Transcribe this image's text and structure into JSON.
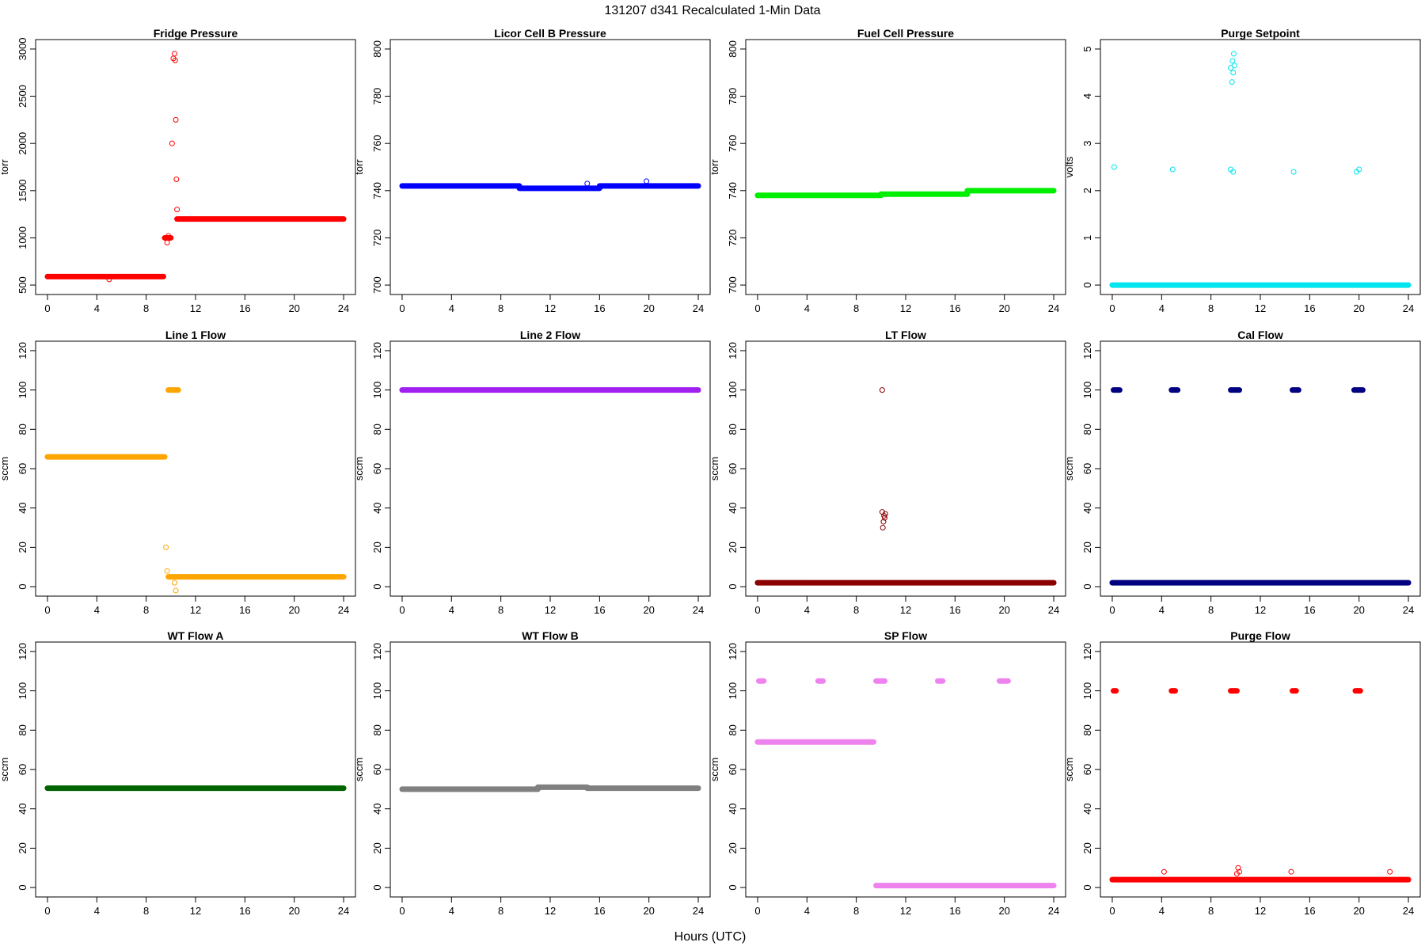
{
  "figure": {
    "title": "131207   d341   Recalculated 1-Min Data",
    "xlabel": "Hours (UTC)"
  },
  "chart_data": [
    {
      "type": "scatter",
      "title": "Fridge Pressure",
      "ylabel": "torr",
      "color": "#ff0000",
      "xlim": [
        0,
        24
      ],
      "ylim": [
        500,
        3000
      ],
      "xticks": [
        0,
        4,
        8,
        12,
        16,
        20,
        24
      ],
      "yticks": [
        500,
        1000,
        1500,
        2000,
        2500,
        3000
      ],
      "segments": [
        {
          "x": [
            0,
            9.4
          ],
          "y": [
            590,
            590
          ]
        },
        {
          "x": [
            9.5,
            10
          ],
          "y": [
            1000,
            1000
          ]
        },
        {
          "x": [
            10.5,
            24
          ],
          "y": [
            1200,
            1200
          ]
        }
      ],
      "points": [
        {
          "x": 5,
          "y": 560
        },
        {
          "x": 9.7,
          "y": 950
        },
        {
          "x": 9.8,
          "y": 1020
        },
        {
          "x": 10.1,
          "y": 2000
        },
        {
          "x": 10.2,
          "y": 2900
        },
        {
          "x": 10.3,
          "y": 2950
        },
        {
          "x": 10.35,
          "y": 2880
        },
        {
          "x": 10.4,
          "y": 2250
        },
        {
          "x": 10.45,
          "y": 1620
        },
        {
          "x": 10.5,
          "y": 1300
        }
      ]
    },
    {
      "type": "scatter",
      "title": "Licor Cell B Pressure",
      "ylabel": "torr",
      "color": "#0000ff",
      "xlim": [
        0,
        24
      ],
      "ylim": [
        700,
        800
      ],
      "xticks": [
        0,
        4,
        8,
        12,
        16,
        20,
        24
      ],
      "yticks": [
        700,
        720,
        740,
        760,
        780,
        800
      ],
      "segments": [
        {
          "x": [
            0,
            9.5
          ],
          "y": [
            742,
            742
          ]
        },
        {
          "x": [
            9.5,
            16
          ],
          "y": [
            741,
            741
          ]
        },
        {
          "x": [
            16,
            24
          ],
          "y": [
            742,
            742
          ]
        }
      ],
      "points": [
        {
          "x": 15,
          "y": 743
        },
        {
          "x": 19.8,
          "y": 744
        }
      ]
    },
    {
      "type": "scatter",
      "title": "Fuel Cell Pressure",
      "ylabel": "torr",
      "color": "#00ee00",
      "xlim": [
        0,
        24
      ],
      "ylim": [
        700,
        800
      ],
      "xticks": [
        0,
        4,
        8,
        12,
        16,
        20,
        24
      ],
      "yticks": [
        700,
        720,
        740,
        760,
        780,
        800
      ],
      "segments": [
        {
          "x": [
            0,
            10
          ],
          "y": [
            738,
            738
          ]
        },
        {
          "x": [
            10,
            17
          ],
          "y": [
            738.5,
            738.5
          ]
        },
        {
          "x": [
            17,
            24
          ],
          "y": [
            740,
            740
          ]
        }
      ],
      "points": []
    },
    {
      "type": "scatter",
      "title": "Purge Setpoint",
      "ylabel": "volts",
      "color": "#00e5ee",
      "xlim": [
        0,
        24
      ],
      "ylim": [
        0,
        5
      ],
      "xticks": [
        0,
        4,
        8,
        12,
        16,
        20,
        24
      ],
      "yticks": [
        0,
        1,
        2,
        3,
        4,
        5
      ],
      "segments": [
        {
          "x": [
            0,
            24
          ],
          "y": [
            0,
            0
          ]
        }
      ],
      "points": [
        {
          "x": 0.15,
          "y": 2.5
        },
        {
          "x": 4.9,
          "y": 2.45
        },
        {
          "x": 9.6,
          "y": 2.45
        },
        {
          "x": 9.8,
          "y": 2.4
        },
        {
          "x": 14.7,
          "y": 2.4
        },
        {
          "x": 19.8,
          "y": 2.4
        },
        {
          "x": 20,
          "y": 2.45
        },
        {
          "x": 9.6,
          "y": 4.6
        },
        {
          "x": 9.7,
          "y": 4.3
        },
        {
          "x": 9.75,
          "y": 4.75
        },
        {
          "x": 9.8,
          "y": 4.5
        },
        {
          "x": 9.85,
          "y": 4.9
        },
        {
          "x": 9.9,
          "y": 4.65
        }
      ]
    },
    {
      "type": "scatter",
      "title": "Line 1 Flow",
      "ylabel": "sccm",
      "color": "#ffa500",
      "xlim": [
        0,
        24
      ],
      "ylim": [
        0,
        120
      ],
      "xticks": [
        0,
        4,
        8,
        12,
        16,
        20,
        24
      ],
      "yticks": [
        0,
        20,
        40,
        60,
        80,
        100,
        120
      ],
      "segments": [
        {
          "x": [
            0,
            9.5
          ],
          "y": [
            66,
            66
          ]
        },
        {
          "x": [
            9.8,
            10.6
          ],
          "y": [
            100,
            100
          ]
        },
        {
          "x": [
            9.8,
            24
          ],
          "y": [
            5,
            5
          ]
        }
      ],
      "points": [
        {
          "x": 9.6,
          "y": 20
        },
        {
          "x": 9.7,
          "y": 8
        },
        {
          "x": 10.3,
          "y": 2
        },
        {
          "x": 10.4,
          "y": -2
        }
      ]
    },
    {
      "type": "scatter",
      "title": "Line 2 Flow",
      "ylabel": "sccm",
      "color": "#a020f0",
      "xlim": [
        0,
        24
      ],
      "ylim": [
        0,
        120
      ],
      "xticks": [
        0,
        4,
        8,
        12,
        16,
        20,
        24
      ],
      "yticks": [
        0,
        20,
        40,
        60,
        80,
        100,
        120
      ],
      "segments": [
        {
          "x": [
            0,
            24
          ],
          "y": [
            100,
            100
          ]
        }
      ],
      "points": []
    },
    {
      "type": "scatter",
      "title": "LT Flow",
      "ylabel": "sccm",
      "color": "#8b0000",
      "xlim": [
        0,
        24
      ],
      "ylim": [
        0,
        120
      ],
      "xticks": [
        0,
        4,
        8,
        12,
        16,
        20,
        24
      ],
      "yticks": [
        0,
        20,
        40,
        60,
        80,
        100,
        120
      ],
      "segments": [
        {
          "x": [
            0,
            24
          ],
          "y": [
            2,
            2
          ]
        }
      ],
      "points": [
        {
          "x": 10.1,
          "y": 100
        },
        {
          "x": 10.1,
          "y": 38
        },
        {
          "x": 10.15,
          "y": 30
        },
        {
          "x": 10.2,
          "y": 33
        },
        {
          "x": 10.25,
          "y": 36
        },
        {
          "x": 10.3,
          "y": 35
        },
        {
          "x": 10.35,
          "y": 37
        }
      ]
    },
    {
      "type": "scatter",
      "title": "Cal Flow",
      "ylabel": "sccm",
      "color": "#000080",
      "xlim": [
        0,
        24
      ],
      "ylim": [
        0,
        120
      ],
      "xticks": [
        0,
        4,
        8,
        12,
        16,
        20,
        24
      ],
      "yticks": [
        0,
        20,
        40,
        60,
        80,
        100,
        120
      ],
      "segments": [
        {
          "x": [
            0,
            24
          ],
          "y": [
            2,
            2
          ]
        },
        {
          "x": [
            0.1,
            0.6
          ],
          "y": [
            100,
            100
          ]
        },
        {
          "x": [
            4.8,
            5.3
          ],
          "y": [
            100,
            100
          ]
        },
        {
          "x": [
            9.6,
            10.3
          ],
          "y": [
            100,
            100
          ]
        },
        {
          "x": [
            14.6,
            15.1
          ],
          "y": [
            100,
            100
          ]
        },
        {
          "x": [
            19.6,
            20.3
          ],
          "y": [
            100,
            100
          ]
        }
      ],
      "points": []
    },
    {
      "type": "scatter",
      "title": "WT Flow A",
      "ylabel": "sccm",
      "color": "#006400",
      "xlim": [
        0,
        24
      ],
      "ylim": [
        0,
        120
      ],
      "xticks": [
        0,
        4,
        8,
        12,
        16,
        20,
        24
      ],
      "yticks": [
        0,
        20,
        40,
        60,
        80,
        100,
        120
      ],
      "segments": [
        {
          "x": [
            0,
            24
          ],
          "y": [
            50.5,
            50.5
          ]
        }
      ],
      "points": []
    },
    {
      "type": "scatter",
      "title": "WT Flow B",
      "ylabel": "sccm",
      "color": "#808080",
      "xlim": [
        0,
        24
      ],
      "ylim": [
        0,
        120
      ],
      "xticks": [
        0,
        4,
        8,
        12,
        16,
        20,
        24
      ],
      "yticks": [
        0,
        20,
        40,
        60,
        80,
        100,
        120
      ],
      "segments": [
        {
          "x": [
            0,
            11
          ],
          "y": [
            50,
            50
          ]
        },
        {
          "x": [
            11,
            15
          ],
          "y": [
            51,
            51
          ]
        },
        {
          "x": [
            15,
            24
          ],
          "y": [
            50.5,
            50.5
          ]
        }
      ],
      "points": []
    },
    {
      "type": "scatter",
      "title": "SP Flow",
      "ylabel": "sccm",
      "color": "#ee82ee",
      "xlim": [
        0,
        24
      ],
      "ylim": [
        0,
        120
      ],
      "xticks": [
        0,
        4,
        8,
        12,
        16,
        20,
        24
      ],
      "yticks": [
        0,
        20,
        40,
        60,
        80,
        100,
        120
      ],
      "segments": [
        {
          "x": [
            0,
            9.4
          ],
          "y": [
            74,
            74
          ]
        },
        {
          "x": [
            9.6,
            24
          ],
          "y": [
            1,
            1
          ]
        },
        {
          "x": [
            0.1,
            0.5
          ],
          "y": [
            105,
            105
          ]
        },
        {
          "x": [
            4.9,
            5.3
          ],
          "y": [
            105,
            105
          ]
        },
        {
          "x": [
            9.6,
            10.3
          ],
          "y": [
            105,
            105
          ]
        },
        {
          "x": [
            14.6,
            15
          ],
          "y": [
            105,
            105
          ]
        },
        {
          "x": [
            19.6,
            20.3
          ],
          "y": [
            105,
            105
          ]
        }
      ],
      "points": []
    },
    {
      "type": "scatter",
      "title": "Purge Flow",
      "ylabel": "sccm",
      "color": "#ff0000",
      "xlim": [
        0,
        24
      ],
      "ylim": [
        0,
        120
      ],
      "xticks": [
        0,
        4,
        8,
        12,
        16,
        20,
        24
      ],
      "yticks": [
        0,
        20,
        40,
        60,
        80,
        100,
        120
      ],
      "segments": [
        {
          "x": [
            0,
            24
          ],
          "y": [
            4,
            4
          ]
        },
        {
          "x": [
            0.1,
            0.3
          ],
          "y": [
            100,
            100
          ]
        },
        {
          "x": [
            4.8,
            5.1
          ],
          "y": [
            100,
            100
          ]
        },
        {
          "x": [
            9.6,
            10.1
          ],
          "y": [
            100,
            100
          ]
        },
        {
          "x": [
            14.6,
            14.9
          ],
          "y": [
            100,
            100
          ]
        },
        {
          "x": [
            19.7,
            20.1
          ],
          "y": [
            100,
            100
          ]
        }
      ],
      "points": [
        {
          "x": 10.2,
          "y": 10
        },
        {
          "x": 10.3,
          "y": 8
        },
        {
          "x": 10.1,
          "y": 7
        },
        {
          "x": 4.2,
          "y": 8
        },
        {
          "x": 14.5,
          "y": 8
        },
        {
          "x": 22.5,
          "y": 8
        }
      ]
    }
  ]
}
